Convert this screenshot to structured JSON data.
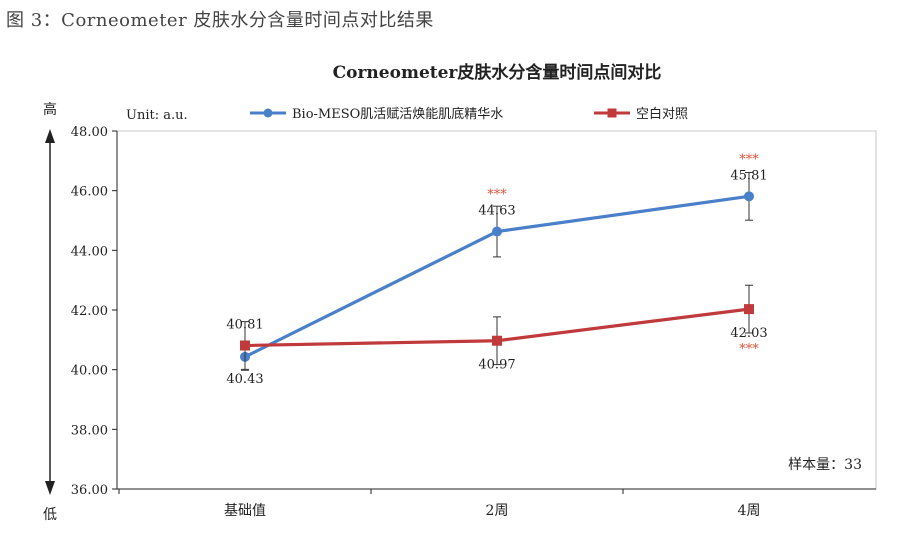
{
  "figure_caption": "图 3：Corneometer 皮肤水分含量时间点对比结果",
  "sample_note": "样本量：33",
  "axis_high": "高",
  "axis_low": "低",
  "colors": {
    "series1": "#4a7fc9",
    "series2": "#c0393b",
    "significance": "#e0533a",
    "axis": "#222222"
  },
  "chart_data": {
    "type": "line",
    "title": "Corneometer皮肤水分含量时间点间对比",
    "unit_label": "Unit: a.u.",
    "categories": [
      "基础值",
      "2周",
      "4周"
    ],
    "ylim": [
      36,
      48
    ],
    "yticks": [
      "36.00",
      "38.00",
      "40.00",
      "42.00",
      "44.00",
      "46.00",
      "48.00"
    ],
    "grid": false,
    "legend_position": "top",
    "series": [
      {
        "name": "Bio-MESO肌活赋活焕能肌底精华水",
        "values": [
          40.43,
          44.63,
          45.81
        ],
        "labels": [
          "40.43",
          "44.63",
          "45.81"
        ],
        "error": [
          0.45,
          0.85,
          0.8
        ],
        "significance": [
          "",
          "***",
          "***"
        ]
      },
      {
        "name": "空白对照",
        "values": [
          40.81,
          40.97,
          42.03
        ],
        "labels": [
          "40.81",
          "40.97",
          "42.03"
        ],
        "error": [
          0.8,
          0.8,
          0.8
        ],
        "significance": [
          "",
          "",
          "***"
        ]
      }
    ]
  }
}
